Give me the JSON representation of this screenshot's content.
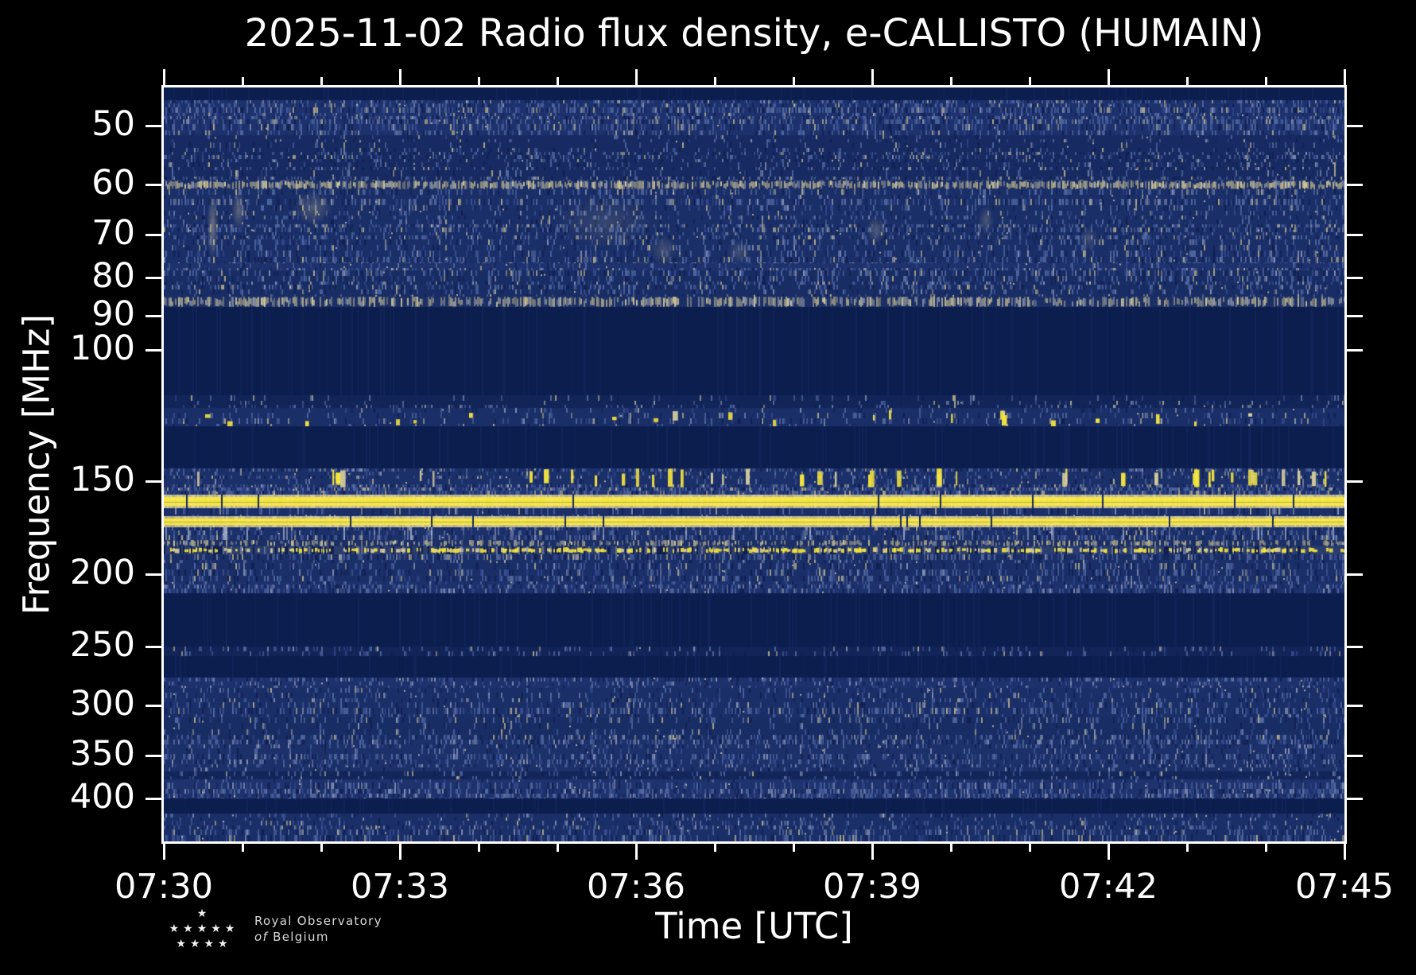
{
  "title": "2025-11-02 Radio flux density, e-CALLISTO (HUMAIN)",
  "axes": {
    "x": {
      "label": "Time [UTC]",
      "major_ticks": [
        "07:30",
        "07:33",
        "07:36",
        "07:39",
        "07:42",
        "07:45"
      ],
      "minor_tick_interval_minutes": 1,
      "start": "07:30",
      "end": "07:45"
    },
    "y": {
      "label": "Frequency [MHz]",
      "ticks": [
        "50",
        "60",
        "70",
        "80",
        "90",
        "100",
        "150",
        "200",
        "250",
        "300",
        "350",
        "400"
      ],
      "scale": "log",
      "inverted": true
    }
  },
  "chart_data": {
    "type": "heatmap",
    "title": "2025-11-02 Radio flux density, e-CALLISTO (HUMAIN)",
    "xlabel": "Time [UTC]",
    "ylabel": "Frequency [MHz]",
    "x_range_utc": [
      "07:30",
      "07:45"
    ],
    "x_span_minutes": 15,
    "y_range_mhz": [
      44.4,
      456.6
    ],
    "y_scale": "log",
    "legend": "none",
    "grid": false,
    "palette": {
      "background": "#000000",
      "axis": "#ffffff",
      "deep": "#0c1e4e",
      "base": "#2c4287",
      "midBright": "#34498e",
      "darkSpot": "#101f4f",
      "lightBlue": "#5168a0",
      "gray": "#8791ad",
      "tan": "#b0a987",
      "cream": "#d8cf9d",
      "yellow": "#f4e43e",
      "streak": "#ccd3e2"
    },
    "bands": [
      {
        "f1": 44.4,
        "f2": 46.2,
        "type": "dark",
        "desc": "upper band edge"
      },
      {
        "f1": 46.2,
        "f2": 51.5,
        "type": "noise",
        "level": 0.6,
        "desc": "speckled background ~50 MHz"
      },
      {
        "f1": 51.5,
        "f2": 59.2,
        "type": "noise",
        "level": 0.38
      },
      {
        "f1": 59.2,
        "f2": 60.8,
        "type": "speckline",
        "level": 0.8,
        "desc": "RFI line ~60 MHz"
      },
      {
        "f1": 60.8,
        "f2": 76.5,
        "type": "noise",
        "level": 0.5,
        "desc": "background with faint ionosonde wisps"
      },
      {
        "f1": 76.5,
        "f2": 78.2,
        "type": "noise",
        "level": 0.62
      },
      {
        "f1": 78.2,
        "f2": 84.8,
        "type": "noise",
        "level": 0.45
      },
      {
        "f1": 84.8,
        "f2": 87.5,
        "type": "speckline",
        "level": 0.6,
        "desc": "RFI line ~86 MHz"
      },
      {
        "f1": 87.5,
        "f2": 115.0,
        "type": "dark",
        "desc": "FM broadcast band, filtered/blank"
      },
      {
        "f1": 115.0,
        "f2": 119.5,
        "type": "noise",
        "level": 0.22
      },
      {
        "f1": 119.5,
        "f2": 126.5,
        "type": "airband",
        "level": 0.5,
        "burst": 0.03,
        "desc": "aeronautical VHF, sporadic bright bursts"
      },
      {
        "f1": 126.5,
        "f2": 144.0,
        "type": "dark"
      },
      {
        "f1": 144.0,
        "f2": 153.0,
        "type": "airband",
        "level": 0.52,
        "burst": 0.06,
        "burstTall": true,
        "desc": "intermittent yellow dashes ~148 MHz"
      },
      {
        "f1": 153.0,
        "f2": 156.4,
        "type": "noise",
        "level": 0.72,
        "tan": true
      },
      {
        "f1": 156.4,
        "f2": 163.0,
        "type": "yellow",
        "desc": "strong continuous RFI carrier ~158 MHz"
      },
      {
        "f1": 163.0,
        "f2": 167.0,
        "type": "noise",
        "level": 0.5
      },
      {
        "f1": 167.0,
        "f2": 173.0,
        "type": "yellow",
        "desc": "strong continuous RFI carrier ~170 MHz"
      },
      {
        "f1": 173.0,
        "f2": 180.0,
        "type": "noise",
        "level": 0.55,
        "streaks": true
      },
      {
        "f1": 180.0,
        "f2": 183.5,
        "type": "speckline",
        "level": 0.45
      },
      {
        "f1": 183.5,
        "f2": 188.0,
        "type": "dotted",
        "desc": "intermittent dotted carrier ~185 MHz"
      },
      {
        "f1": 188.0,
        "f2": 204.5,
        "type": "noise",
        "level": 0.5
      },
      {
        "f1": 204.5,
        "f2": 212.0,
        "type": "noise",
        "level": 0.6,
        "gray": true
      },
      {
        "f1": 212.0,
        "f2": 250.0,
        "type": "dark"
      },
      {
        "f1": 250.0,
        "f2": 257.5,
        "type": "noise",
        "level": 0.2,
        "desc": "faint row at 250 MHz"
      },
      {
        "f1": 257.5,
        "f2": 275.0,
        "type": "dark"
      },
      {
        "f1": 275.0,
        "f2": 284.0,
        "type": "noise",
        "level": 0.58,
        "gray": true
      },
      {
        "f1": 284.0,
        "f2": 311.0,
        "type": "noise",
        "level": 0.5
      },
      {
        "f1": 311.0,
        "f2": 333.0,
        "type": "noise",
        "level": 0.45
      },
      {
        "f1": 333.0,
        "f2": 368.0,
        "type": "noise",
        "level": 0.55,
        "gray": true
      },
      {
        "f1": 368.0,
        "f2": 377.0,
        "type": "noise",
        "level": 0.24
      },
      {
        "f1": 377.0,
        "f2": 400.0,
        "type": "noise",
        "level": 0.62,
        "gray": true
      },
      {
        "f1": 400.0,
        "f2": 419.0,
        "type": "dark"
      },
      {
        "f1": 419.0,
        "f2": 456.6,
        "type": "noise",
        "level": 0.5,
        "desc": "bottom noise band to 450 MHz"
      }
    ],
    "wisps": [
      {
        "t": 0.62,
        "f1": 61,
        "f2": 76,
        "dt": 0.14,
        "s": 0.85
      },
      {
        "t": 0.95,
        "f1": 61,
        "f2": 69,
        "dt": 0.18,
        "s": 0.7
      },
      {
        "t": 1.9,
        "f1": 61,
        "f2": 68,
        "dt": 0.5,
        "s": 0.55
      },
      {
        "t": 5.6,
        "f1": 62,
        "f2": 73,
        "dt": 1.3,
        "s": 0.3
      },
      {
        "t": 6.35,
        "f1": 70,
        "f2": 77,
        "dt": 0.35,
        "s": 0.45
      },
      {
        "t": 7.3,
        "f1": 71,
        "f2": 77,
        "dt": 0.3,
        "s": 0.4
      },
      {
        "t": 9.05,
        "f1": 66,
        "f2": 72,
        "dt": 0.25,
        "s": 0.55
      },
      {
        "t": 10.45,
        "f1": 64,
        "f2": 70,
        "dt": 0.2,
        "s": 0.5
      },
      {
        "t": 11.75,
        "f1": 68,
        "f2": 74,
        "dt": 0.25,
        "s": 0.4
      }
    ]
  },
  "footer": {
    "org_line1": "Royal Observatory",
    "org_line2_italic": "of",
    "org_line2": "Belgium",
    "star_rows": [
      1,
      5,
      4
    ]
  }
}
